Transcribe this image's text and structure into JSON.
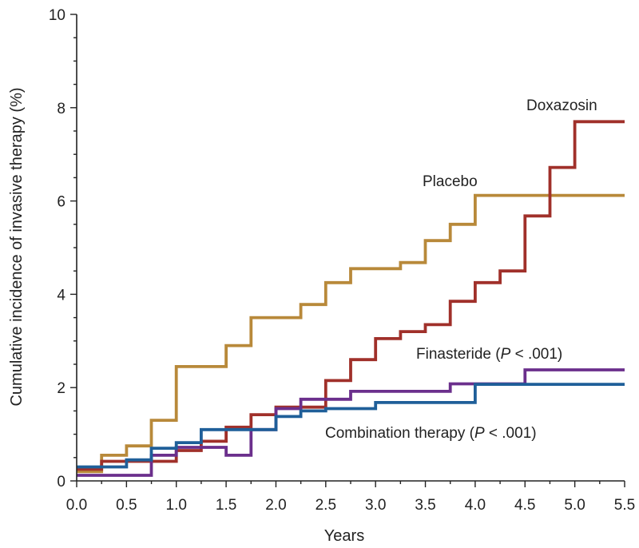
{
  "chart_data": {
    "type": "line",
    "step": true,
    "xlabel": "Years",
    "ylabel": "Cumulative incidence of invasive therapy (%)",
    "xlim": [
      0,
      5.5
    ],
    "ylim": [
      0,
      10
    ],
    "x_ticks": [
      "0.0",
      "0.5",
      "1.0",
      "1.5",
      "2.0",
      "2.5",
      "3.0",
      "3.5",
      "4.0",
      "4.5",
      "5.0",
      "5.5"
    ],
    "y_ticks": [
      "0",
      "2",
      "4",
      "6",
      "8",
      "10"
    ],
    "grid": false,
    "legend": "none",
    "series": [
      {
        "name": "Placebo",
        "label": "Placebo",
        "color": "#b8893a",
        "x": [
          0,
          0.25,
          0.5,
          0.75,
          1.0,
          1.5,
          1.75,
          2.25,
          2.5,
          2.75,
          3.25,
          3.5,
          3.75,
          4.0,
          5.5
        ],
        "y": [
          0.2,
          0.55,
          0.75,
          1.3,
          2.45,
          2.9,
          3.5,
          3.78,
          4.25,
          4.55,
          4.68,
          5.15,
          5.5,
          6.12,
          6.12
        ]
      },
      {
        "name": "Doxazosin",
        "label": "Doxazosin",
        "color": "#a0302a",
        "x": [
          0,
          0.25,
          0.75,
          1.0,
          1.25,
          1.5,
          1.75,
          2.0,
          2.5,
          2.75,
          3.0,
          3.25,
          3.5,
          3.75,
          4.0,
          4.25,
          4.5,
          4.75,
          5.0,
          5.5
        ],
        "y": [
          0.25,
          0.42,
          0.42,
          0.65,
          0.85,
          1.15,
          1.42,
          1.58,
          2.15,
          2.6,
          3.05,
          3.2,
          3.35,
          3.85,
          4.25,
          4.5,
          5.68,
          6.72,
          7.7,
          7.7
        ]
      },
      {
        "name": "Finasteride",
        "label": "Finasteride (P < .001)",
        "color": "#6b2f8c",
        "x": [
          0,
          0.75,
          1.0,
          1.5,
          1.75,
          2.0,
          2.25,
          2.75,
          3.75,
          4.5,
          5.5
        ],
        "y": [
          0.12,
          0.55,
          0.72,
          0.55,
          1.1,
          1.55,
          1.75,
          1.92,
          2.08,
          2.38,
          2.38
        ]
      },
      {
        "name": "Combination therapy",
        "label": "Combination therapy (P < .001)",
        "color": "#1f5f99",
        "x": [
          0,
          0.5,
          0.75,
          1.0,
          1.25,
          2.0,
          2.25,
          2.5,
          3.0,
          4.0,
          5.5
        ],
        "y": [
          0.3,
          0.45,
          0.7,
          0.82,
          1.1,
          1.38,
          1.5,
          1.55,
          1.68,
          2.07,
          2.07
        ]
      }
    ]
  }
}
